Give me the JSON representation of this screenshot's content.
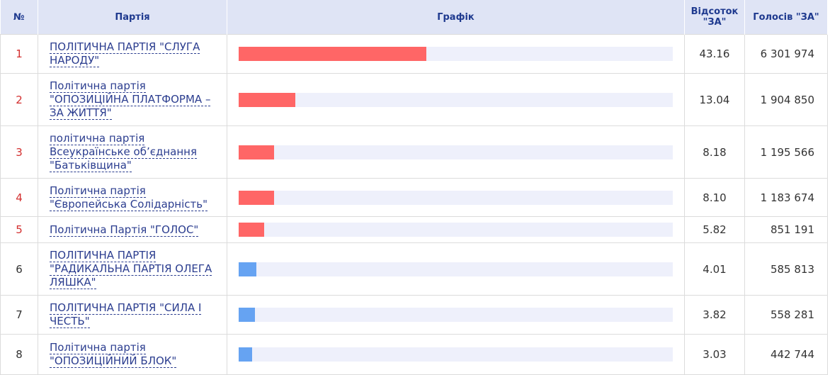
{
  "table": {
    "headers": [
      "№",
      "Партія",
      "Графік",
      "Відсоток \"ЗА\"",
      "Голосів \"ЗА\""
    ],
    "xlim": [
      0,
      100
    ],
    "rows": [
      {
        "number": "1",
        "party": "ПОЛІТИЧНА ПАРТІЯ \"СЛУГА НАРОДУ\"",
        "percent": "43.16",
        "votes": "6 301 974",
        "bar_color": "#ff6666",
        "number_color": "#d32f2f"
      },
      {
        "number": "2",
        "party": "Політична партія \"ОПОЗИЦІЙНА ПЛАТФОРМА – ЗА ЖИТТЯ\"",
        "percent": "13.04",
        "votes": "1 904 850",
        "bar_color": "#ff6666",
        "number_color": "#d32f2f"
      },
      {
        "number": "3",
        "party": "політична партія Всеукраїнське об’єднання \"Батьківщина\"",
        "percent": "8.18",
        "votes": "1 195 566",
        "bar_color": "#ff6666",
        "number_color": "#d32f2f"
      },
      {
        "number": "4",
        "party": "Політична партія \"Європейська Солідарність\"",
        "percent": "8.10",
        "votes": "1 183 674",
        "bar_color": "#ff6666",
        "number_color": "#d32f2f"
      },
      {
        "number": "5",
        "party": "Політична Партія \"ГОЛОС\"",
        "percent": "5.82",
        "votes": "851 191",
        "bar_color": "#ff6666",
        "number_color": "#d32f2f"
      },
      {
        "number": "6",
        "party": "ПОЛІТИЧНА ПАРТІЯ \"РАДИКАЛЬНА ПАРТІЯ ОЛЕГА ЛЯШКА\"",
        "percent": "4.01",
        "votes": "585 813",
        "bar_color": "#66a3f2",
        "number_color": "#333333"
      },
      {
        "number": "7",
        "party": "ПОЛІТИЧНА ПАРТІЯ \"СИЛА І ЧЕСТЬ\"",
        "percent": "3.82",
        "votes": "558 281",
        "bar_color": "#66a3f2",
        "number_color": "#333333"
      },
      {
        "number": "8",
        "party": "Політична партія \"ОПОЗИЦІЙНИЙ БЛОК\"",
        "percent": "3.03",
        "votes": "442 744",
        "bar_color": "#66a3f2",
        "number_color": "#333333"
      }
    ]
  }
}
